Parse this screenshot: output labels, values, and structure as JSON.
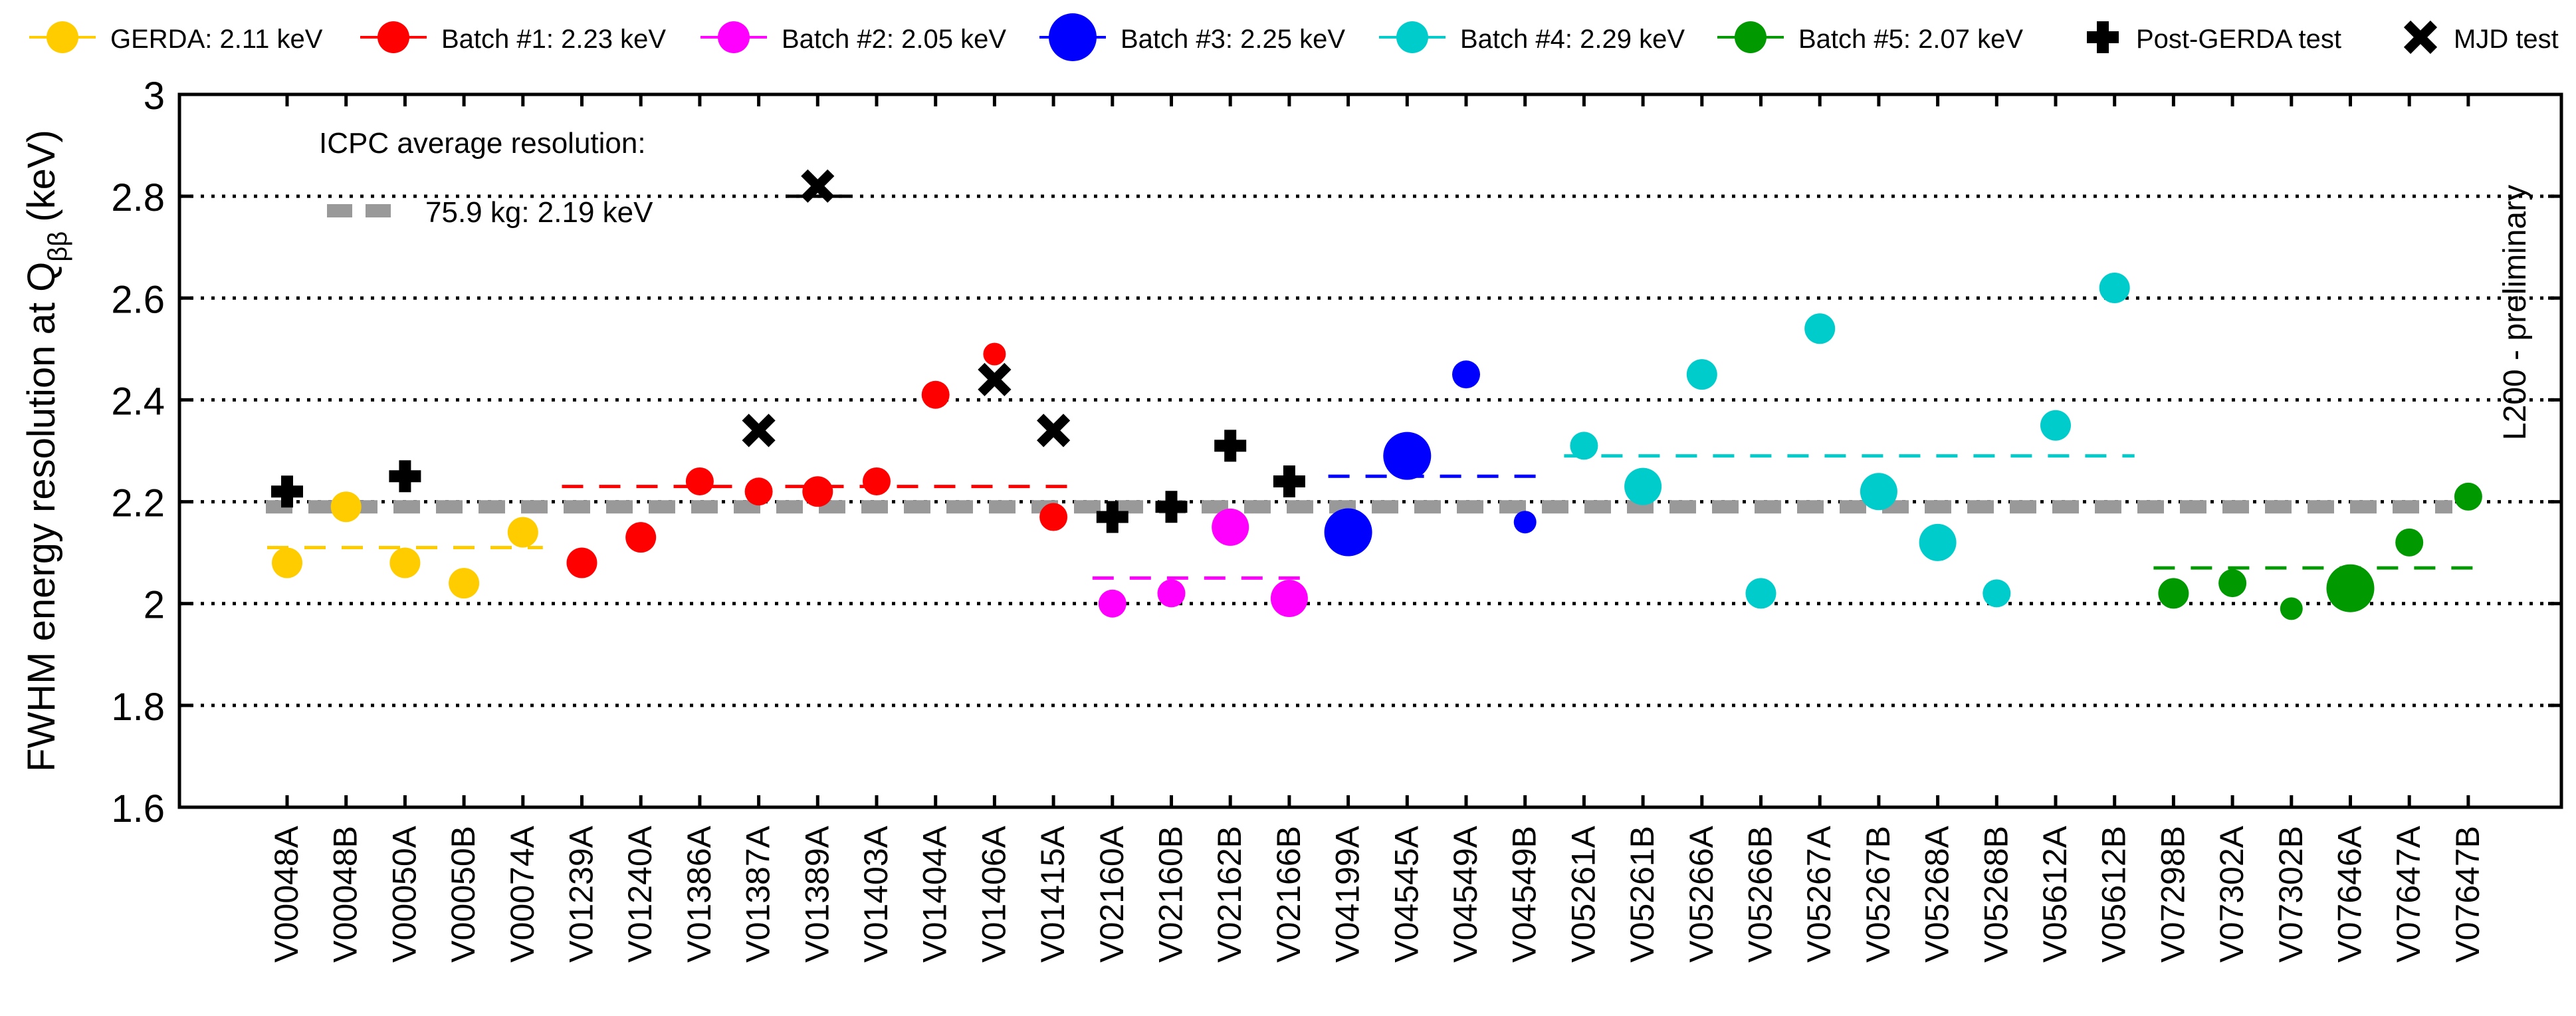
{
  "chart_data": {
    "type": "scatter",
    "ylabel": "FWHM energy resolution at Q",
    "ylabel_sub": "ββ",
    "ylabel_unit": "(keV)",
    "ylim": [
      1.6,
      3.0
    ],
    "yticks": [
      "1.6",
      "1.8",
      "2",
      "2.2",
      "2.4",
      "2.6",
      "2.8",
      "3"
    ],
    "grid_lines": [
      1.8,
      2.0,
      2.2,
      2.4,
      2.6,
      2.8
    ],
    "watermark": "L200 - preliminary",
    "annotation_title": "ICPC average resolution:",
    "annotation_entry": "75.9 kg: 2.19 keV",
    "overall_average": 2.19,
    "categories": [
      "V00048A",
      "V00048B",
      "V00050A",
      "V00050B",
      "V00074A",
      "V01239A",
      "V01240A",
      "V01386A",
      "V01387A",
      "V01389A",
      "V01403A",
      "V01404A",
      "V01406A",
      "V01415A",
      "V02160A",
      "V02160B",
      "V02162B",
      "V02166B",
      "V04199A",
      "V04545A",
      "V04549A",
      "V04549B",
      "V05261A",
      "V05261B",
      "V05266A",
      "V05266B",
      "V05267A",
      "V05267B",
      "V05268A",
      "V05268B",
      "V05612A",
      "V05612B",
      "V07298B",
      "V07302A",
      "V07302B",
      "V07646A",
      "V07647A",
      "V07647B"
    ],
    "legend": [
      {
        "label": "GERDA: 2.11 keV",
        "color": "#ffcc00",
        "marker": "circle"
      },
      {
        "label": "Batch #1: 2.23 keV",
        "color": "#ff0000",
        "marker": "circle"
      },
      {
        "label": "Batch #2: 2.05 keV",
        "color": "#ff00ff",
        "marker": "circle"
      },
      {
        "label": "Batch #3: 2.25 keV",
        "color": "#0000ff",
        "marker": "circle"
      },
      {
        "label": "Batch #4: 2.29 keV",
        "color": "#00cccc",
        "marker": "circle"
      },
      {
        "label": "Batch #5: 2.07 keV",
        "color": "#009900",
        "marker": "circle"
      },
      {
        "label": "Post-GERDA test",
        "color": "#000000",
        "marker": "plus"
      },
      {
        "label": "MJD test",
        "color": "#000000",
        "marker": "cross"
      }
    ],
    "series": [
      {
        "name": "GERDA",
        "color": "#ffcc00",
        "average": 2.11,
        "avg_range": [
          0,
          4
        ],
        "points": [
          {
            "x": 0,
            "y": 2.08,
            "size": 2
          },
          {
            "x": 1,
            "y": 2.19,
            "size": 2
          },
          {
            "x": 2,
            "y": 2.08,
            "size": 2
          },
          {
            "x": 3,
            "y": 2.04,
            "size": 2
          },
          {
            "x": 4,
            "y": 2.14,
            "size": 2
          }
        ]
      },
      {
        "name": "Batch #1",
        "color": "#ff0000",
        "average": 2.23,
        "avg_range": [
          5,
          13
        ],
        "points": [
          {
            "x": 5,
            "y": 2.08,
            "size": 2
          },
          {
            "x": 6,
            "y": 2.13,
            "size": 2
          },
          {
            "x": 7,
            "y": 2.24,
            "size": 1
          },
          {
            "x": 8,
            "y": 2.22,
            "size": 1
          },
          {
            "x": 9,
            "y": 2.22,
            "size": 2
          },
          {
            "x": 10,
            "y": 2.24,
            "size": 1
          },
          {
            "x": 11,
            "y": 2.41,
            "size": 1
          },
          {
            "x": 12,
            "y": 2.49,
            "size": 0
          },
          {
            "x": 13,
            "y": 2.17,
            "size": 1
          }
        ]
      },
      {
        "name": "Batch #2",
        "color": "#ff00ff",
        "average": 2.05,
        "avg_range": [
          14,
          17
        ],
        "points": [
          {
            "x": 14,
            "y": 2.0,
            "size": 1
          },
          {
            "x": 15,
            "y": 2.02,
            "size": 1
          },
          {
            "x": 16,
            "y": 2.15,
            "size": 3
          },
          {
            "x": 17,
            "y": 2.01,
            "size": 3
          }
        ]
      },
      {
        "name": "Batch #3",
        "color": "#0000ff",
        "average": 2.25,
        "avg_range": [
          18,
          21
        ],
        "points": [
          {
            "x": 18,
            "y": 2.14,
            "size": 4
          },
          {
            "x": 19,
            "y": 2.29,
            "size": 4
          },
          {
            "x": 20,
            "y": 2.45,
            "size": 1
          },
          {
            "x": 21,
            "y": 2.16,
            "size": 0
          }
        ]
      },
      {
        "name": "Batch #4",
        "color": "#00cccc",
        "average": 2.29,
        "avg_range": [
          22,
          31
        ],
        "points": [
          {
            "x": 22,
            "y": 2.31,
            "size": 1
          },
          {
            "x": 23,
            "y": 2.23,
            "size": 3
          },
          {
            "x": 24,
            "y": 2.45,
            "size": 2
          },
          {
            "x": 25,
            "y": 2.02,
            "size": 2
          },
          {
            "x": 26,
            "y": 2.54,
            "size": 2
          },
          {
            "x": 27,
            "y": 2.22,
            "size": 3
          },
          {
            "x": 28,
            "y": 2.12,
            "size": 3
          },
          {
            "x": 29,
            "y": 2.02,
            "size": 1
          },
          {
            "x": 30,
            "y": 2.35,
            "size": 2
          },
          {
            "x": 31,
            "y": 2.62,
            "size": 2
          }
        ]
      },
      {
        "name": "Batch #5",
        "color": "#009900",
        "average": 2.07,
        "avg_range": [
          32,
          37
        ],
        "points": [
          {
            "x": 32,
            "y": 2.02,
            "size": 2
          },
          {
            "x": 33,
            "y": 2.04,
            "size": 1
          },
          {
            "x": 34,
            "y": 1.99,
            "size": 0
          },
          {
            "x": 35,
            "y": 2.03,
            "size": 4
          },
          {
            "x": 36,
            "y": 2.12,
            "size": 1
          },
          {
            "x": 37,
            "y": 2.21,
            "size": 1
          }
        ]
      }
    ],
    "post_gerda_test": [
      {
        "x": 0,
        "y": 2.22
      },
      {
        "x": 2,
        "y": 2.25
      },
      {
        "x": 14,
        "y": 2.17
      },
      {
        "x": 15,
        "y": 2.19
      },
      {
        "x": 16,
        "y": 2.31
      },
      {
        "x": 17,
        "y": 2.24
      }
    ],
    "mjd_test": [
      {
        "x": 8,
        "y": 2.34
      },
      {
        "x": 9,
        "y": 2.82
      },
      {
        "x": 12,
        "y": 2.44
      },
      {
        "x": 13,
        "y": 2.34
      }
    ],
    "mjd_short_line": {
      "x": 9,
      "y": 2.8
    }
  }
}
